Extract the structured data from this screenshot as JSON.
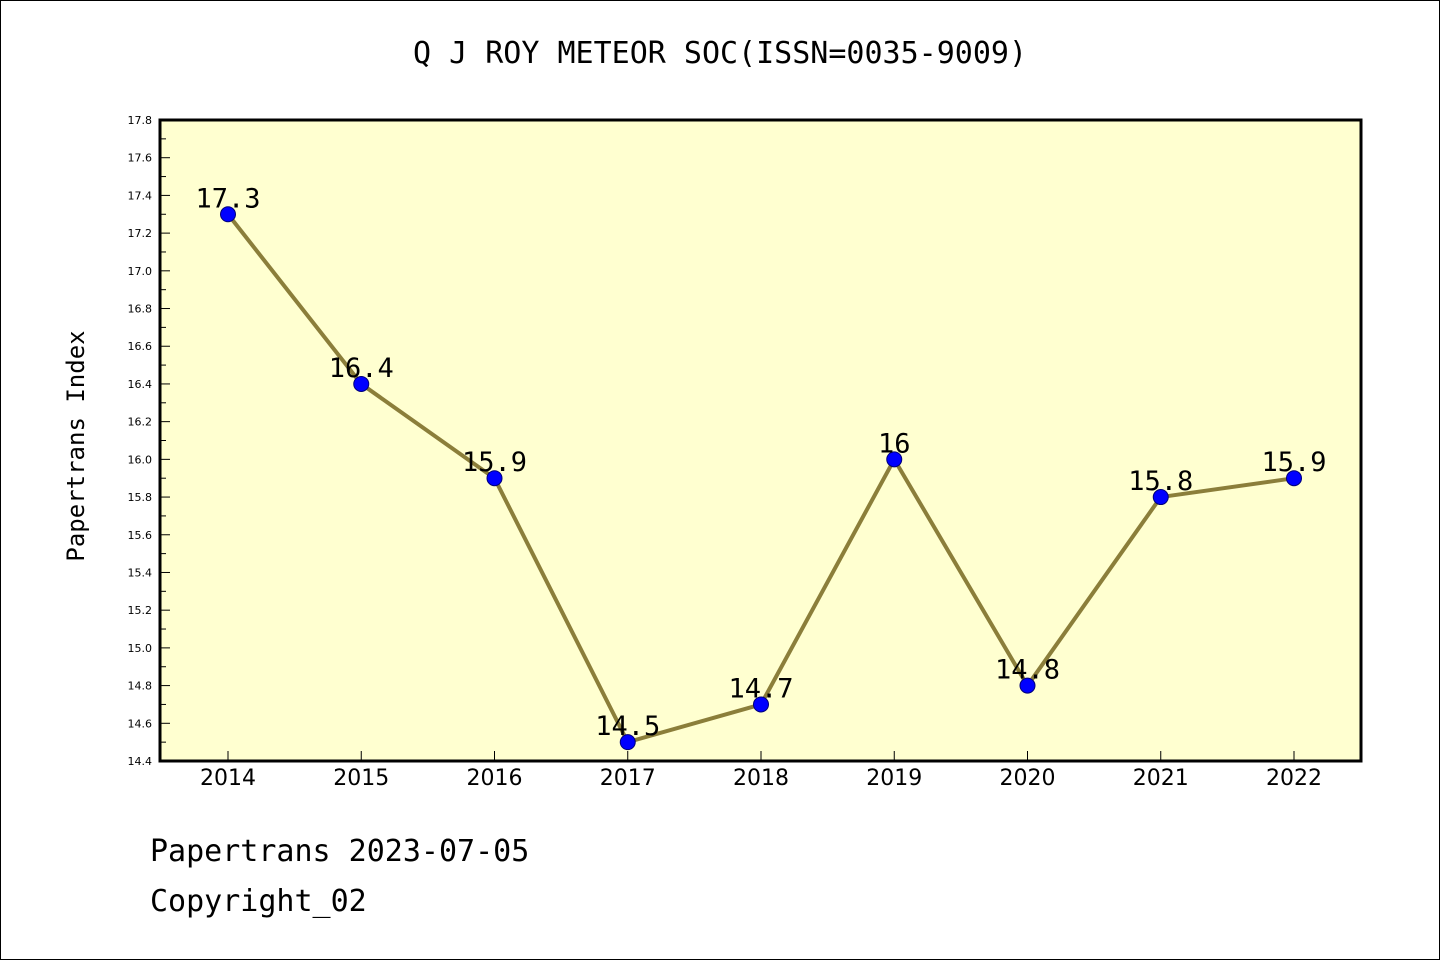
{
  "chart_data": {
    "type": "line",
    "title": "Q J ROY METEOR SOC(ISSN=0035-9009)",
    "xlabel": "",
    "ylabel": "Papertrans Index",
    "categories": [
      "2014",
      "2015",
      "2016",
      "2017",
      "2018",
      "2019",
      "2020",
      "2021",
      "2022"
    ],
    "series": [
      {
        "values": [
          17.3,
          16.4,
          15.9,
          14.5,
          14.7,
          16,
          14.8,
          15.8,
          15.9
        ],
        "data_labels": [
          "17.3",
          "16.4",
          "15.9",
          "14.5",
          "14.7",
          "16",
          "14.8",
          "15.8",
          "15.9"
        ]
      }
    ],
    "ylim": [
      14.4,
      17.8
    ],
    "y_ticks": [
      "14.4",
      "14.6",
      "14.8",
      "15.0",
      "15.2",
      "15.4",
      "15.6",
      "15.8",
      "16.0",
      "16.2",
      "16.4",
      "16.6",
      "16.8",
      "17.0",
      "17.2",
      "17.4",
      "17.6",
      "17.8"
    ],
    "grid": false,
    "legend": "none",
    "colors": {
      "plot_background": "#ffffd0",
      "line": "#8b7e3a",
      "marker": "#0000ff",
      "axis": "#000000"
    }
  },
  "footer": {
    "date_text": "Papertrans 2023-07-05",
    "copyright_text": "Copyright_02"
  }
}
